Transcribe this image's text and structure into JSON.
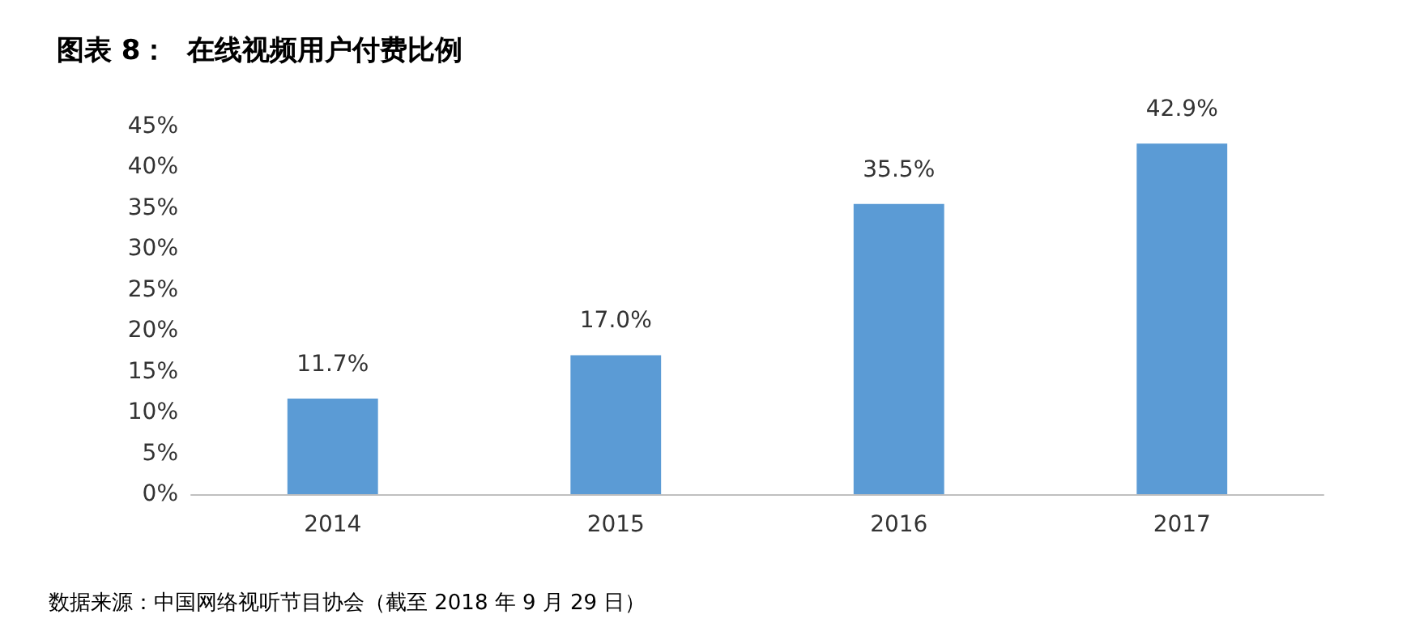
{
  "chart_data": {
    "type": "bar",
    "title": "图表 8：  在线视频用户付费比例",
    "categories": [
      "2014",
      "2015",
      "2016",
      "2017"
    ],
    "values": [
      11.7,
      17.0,
      35.5,
      42.9
    ],
    "value_labels": [
      "11.7%",
      "17.0%",
      "35.5%",
      "42.9%"
    ],
    "color": "#5b9bd5",
    "ylim": [
      0,
      45
    ],
    "yticks": [
      {
        "value": 0,
        "label": "0%"
      },
      {
        "value": 5,
        "label": "5%"
      },
      {
        "value": 10,
        "label": "10%"
      },
      {
        "value": 15,
        "label": "15%"
      },
      {
        "value": 20,
        "label": "20%"
      },
      {
        "value": 25,
        "label": "25%"
      },
      {
        "value": 30,
        "label": "30%"
      },
      {
        "value": 35,
        "label": "35%"
      },
      {
        "value": 40,
        "label": "40%"
      },
      {
        "value": 45,
        "label": "45%"
      }
    ],
    "grid": false,
    "annotations": [
      "数据来源：中国网络视听节目协会（截至 2018 年 9 月 29 日）"
    ]
  }
}
